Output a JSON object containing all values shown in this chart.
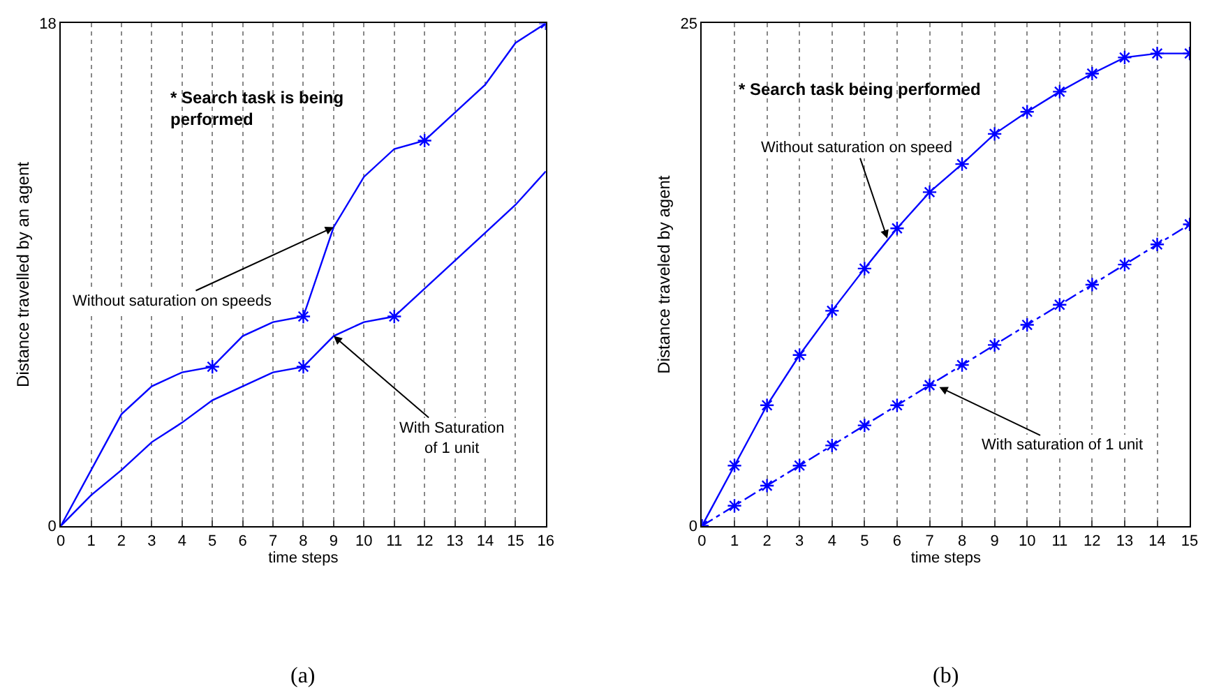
{
  "chart_data": [
    {
      "type": "line",
      "xlabel": "time steps",
      "ylabel": "Distance travelled by an agent",
      "x": [
        0,
        1,
        2,
        3,
        4,
        5,
        6,
        7,
        8,
        9,
        10,
        11,
        12,
        13,
        14,
        15,
        16
      ],
      "xlim": [
        0,
        16
      ],
      "xticks": [
        0,
        1,
        2,
        3,
        4,
        5,
        6,
        7,
        8,
        9,
        10,
        11,
        12,
        13,
        14,
        15,
        16
      ],
      "ylim": [
        0,
        18
      ],
      "yticks": [
        0,
        18
      ],
      "grid": "x",
      "marker": "none",
      "line_style": "solid",
      "series": [
        {
          "color": "#0000ff",
          "values": [
            0,
            2.0,
            4.0,
            5.0,
            5.5,
            5.7,
            6.8,
            7.3,
            7.5,
            10.7,
            12.5,
            13.5,
            13.8,
            14.8,
            15.8,
            17.3,
            18.0
          ]
        },
        {
          "color": "#0000ff",
          "values": [
            0,
            1.1,
            2.0,
            3.0,
            3.7,
            4.5,
            5.0,
            5.5,
            5.7,
            6.8,
            7.3,
            7.5,
            8.5,
            9.5,
            10.5,
            11.5,
            12.7
          ]
        },
        {
          "type": "scatter",
          "marker": "cross",
          "color": "#0000ff",
          "values": [
            null,
            null,
            null,
            null,
            null,
            5.7,
            null,
            null,
            7.5,
            null,
            null,
            null,
            13.8,
            null,
            null,
            null,
            18.0
          ]
        },
        {
          "type": "scatter",
          "marker": "cross",
          "color": "#0000ff",
          "values": [
            null,
            null,
            null,
            null,
            null,
            null,
            null,
            null,
            5.7,
            null,
            null,
            7.5,
            null,
            null,
            null,
            null,
            null
          ]
        }
      ],
      "annotations": [
        "* Search task is being performed",
        {
          "text": "Without saturation on speeds",
          "x": 9,
          "y": 10.7
        },
        {
          "text": "With Saturation of 1 unit",
          "x": 9,
          "y": 6.8
        },
        "(a)"
      ]
    },
    {
      "type": "line",
      "xlabel": "time steps",
      "ylabel": "Distance traveled by agent",
      "x": [
        0,
        1,
        2,
        3,
        4,
        5,
        6,
        7,
        8,
        9,
        10,
        11,
        12,
        13,
        14,
        15
      ],
      "xlim": [
        0,
        15
      ],
      "xticks": [
        0,
        1,
        2,
        3,
        4,
        5,
        6,
        7,
        8,
        9,
        10,
        11,
        12,
        13,
        14,
        15
      ],
      "ylim": [
        0,
        25
      ],
      "yticks": [
        0,
        25
      ],
      "grid": "x",
      "marker": "cross",
      "series": [
        {
          "color": "#0000ff",
          "line_style": "solid",
          "values": [
            0,
            3.0,
            6.0,
            8.5,
            10.7,
            12.8,
            14.8,
            16.6,
            18.0,
            19.5,
            20.6,
            21.6,
            22.5,
            23.3,
            23.5,
            23.5
          ]
        },
        {
          "color": "#0000ff",
          "line_style": "dashed",
          "values": [
            0,
            1.0,
            2.0,
            3.0,
            4.0,
            5.0,
            6.0,
            7.0,
            8.0,
            9.0,
            10.0,
            11.0,
            12.0,
            13.0,
            14.0,
            15.0
          ]
        }
      ],
      "annotations": [
        "* Search task being performed",
        {
          "text": "Without saturation on speed",
          "x": 5.7,
          "y": 14.3
        },
        {
          "text": "With saturation of 1 unit",
          "x": 7.3,
          "y": 6.9
        },
        "(b)"
      ]
    }
  ]
}
